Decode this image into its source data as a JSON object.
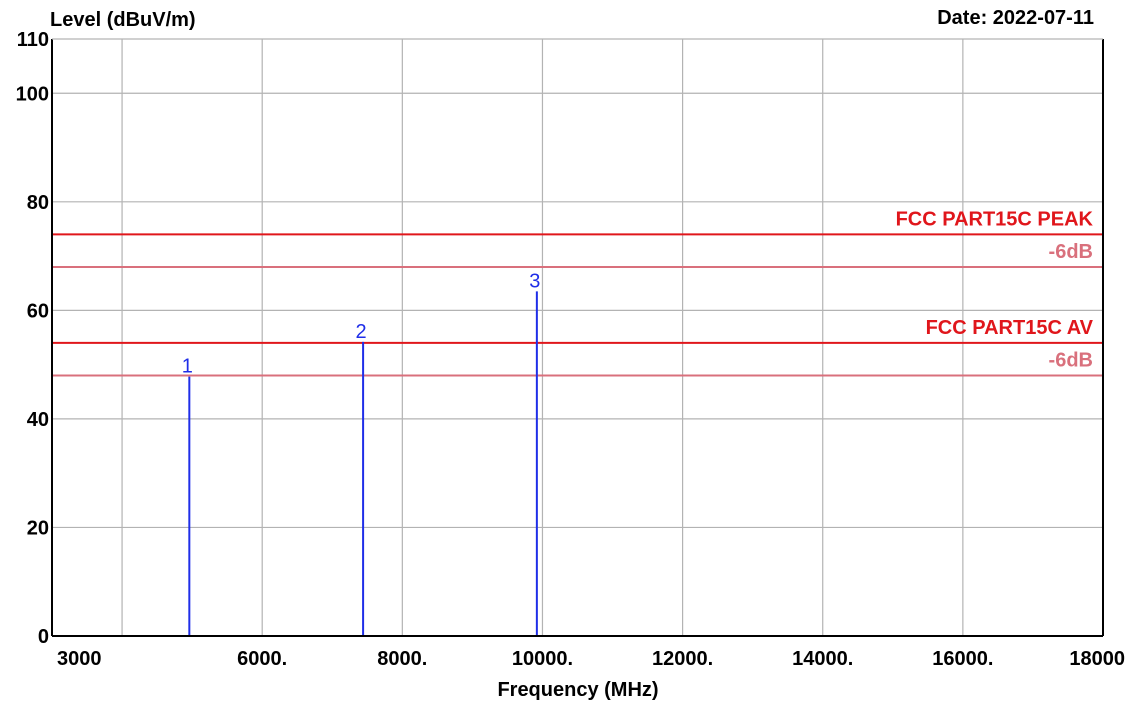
{
  "chart_data": {
    "type": "line",
    "ylabel": "Level (dBuV/m)",
    "xlabel": "Frequency (MHz)",
    "date_label": "Date: 2022-07-11",
    "xlim": [
      3000,
      18000
    ],
    "ylim": [
      0,
      110
    ],
    "x_ticks": [
      {
        "value": 3000,
        "label": "3000"
      },
      {
        "value": 4000,
        "label": ""
      },
      {
        "value": 6000,
        "label": "6000."
      },
      {
        "value": 8000,
        "label": "8000."
      },
      {
        "value": 10000,
        "label": "10000."
      },
      {
        "value": 12000,
        "label": "12000."
      },
      {
        "value": 14000,
        "label": "14000."
      },
      {
        "value": 16000,
        "label": "16000."
      },
      {
        "value": 18000,
        "label": "18000"
      }
    ],
    "y_ticks": [
      {
        "value": 0,
        "label": "0"
      },
      {
        "value": 20,
        "label": "20"
      },
      {
        "value": 40,
        "label": "40"
      },
      {
        "value": 60,
        "label": "60"
      },
      {
        "value": 80,
        "label": "80"
      },
      {
        "value": 100,
        "label": "100"
      },
      {
        "value": 110,
        "label": "110"
      }
    ],
    "grid": true,
    "limit_lines": [
      {
        "label": "FCC PART15C PEAK",
        "value": 74,
        "color": "#e0161b"
      },
      {
        "label": "-6dB",
        "value": 68,
        "color": "#d9707c"
      },
      {
        "label": "FCC PART15C AV",
        "value": 54,
        "color": "#e0161b"
      },
      {
        "label": "-6dB",
        "value": 48,
        "color": "#d9707c"
      }
    ],
    "markers": [
      {
        "label": "1",
        "x": 4960,
        "y": 47.8
      },
      {
        "label": "2",
        "x": 7440,
        "y": 54.2
      },
      {
        "label": "3",
        "x": 9920,
        "y": 63.5
      }
    ],
    "marker_color": "#1f2ee8",
    "grid_color": "#b3b3b3",
    "axis_color": "#000000"
  }
}
